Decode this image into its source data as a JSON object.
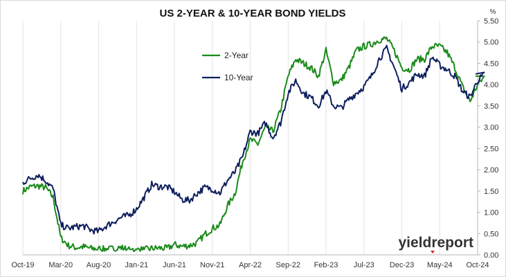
{
  "chart_data": {
    "type": "line",
    "title": "US 2-YEAR & 10-YEAR BOND YIELDS",
    "unit_label": "%",
    "ylim": [
      0.0,
      5.5
    ],
    "y_ticks": [
      "0.00",
      "0.50",
      "1.00",
      "1.50",
      "2.00",
      "2.50",
      "3.00",
      "3.50",
      "4.00",
      "4.50",
      "5.00",
      "5.50"
    ],
    "x_ticks": [
      "Oct-19",
      "Mar-20",
      "Aug-20",
      "Jan-21",
      "Jun-21",
      "Nov-21",
      "Apr-22",
      "Sep-22",
      "Feb-23",
      "Jul-23",
      "Dec-23",
      "May-24",
      "Oct-24"
    ],
    "grid": "vertical",
    "legend_position": "top-center",
    "watermark": "yieldreport",
    "series": [
      {
        "name": "2-Year",
        "color": "#1a8a1a",
        "x": [
          "2019-10",
          "2019-11",
          "2019-12",
          "2020-01",
          "2020-02",
          "2020-03",
          "2020-04",
          "2020-05",
          "2020-06",
          "2020-07",
          "2020-08",
          "2020-09",
          "2020-10",
          "2020-11",
          "2020-12",
          "2021-01",
          "2021-02",
          "2021-03",
          "2021-04",
          "2021-05",
          "2021-06",
          "2021-07",
          "2021-08",
          "2021-09",
          "2021-10",
          "2021-11",
          "2021-12",
          "2022-01",
          "2022-02",
          "2022-03",
          "2022-04",
          "2022-05",
          "2022-06",
          "2022-07",
          "2022-08",
          "2022-09",
          "2022-10",
          "2022-11",
          "2022-12",
          "2023-01",
          "2023-02",
          "2023-03",
          "2023-04",
          "2023-05",
          "2023-06",
          "2023-07",
          "2023-08",
          "2023-09",
          "2023-10",
          "2023-11",
          "2023-12",
          "2024-01",
          "2024-02",
          "2024-03",
          "2024-04",
          "2024-05",
          "2024-06",
          "2024-07",
          "2024-08",
          "2024-09",
          "2024-10",
          "2024-11"
        ],
        "values": [
          1.5,
          1.6,
          1.62,
          1.58,
          1.35,
          0.4,
          0.22,
          0.17,
          0.19,
          0.15,
          0.14,
          0.13,
          0.15,
          0.17,
          0.12,
          0.12,
          0.12,
          0.15,
          0.16,
          0.15,
          0.24,
          0.2,
          0.22,
          0.28,
          0.48,
          0.62,
          0.7,
          1.15,
          1.45,
          2.2,
          2.7,
          2.6,
          3.0,
          2.9,
          3.4,
          4.2,
          4.6,
          4.5,
          4.4,
          4.2,
          4.8,
          4.05,
          4.1,
          4.4,
          4.8,
          4.9,
          4.95,
          5.05,
          5.08,
          4.8,
          4.4,
          4.35,
          4.6,
          4.6,
          4.9,
          4.9,
          4.75,
          4.4,
          3.95,
          3.6,
          4.0,
          4.2
        ]
      },
      {
        "name": "10-Year",
        "color": "#0e1f5e",
        "x": [
          "2019-10",
          "2019-11",
          "2019-12",
          "2020-01",
          "2020-02",
          "2020-03",
          "2020-04",
          "2020-05",
          "2020-06",
          "2020-07",
          "2020-08",
          "2020-09",
          "2020-10",
          "2020-11",
          "2020-12",
          "2021-01",
          "2021-02",
          "2021-03",
          "2021-04",
          "2021-05",
          "2021-06",
          "2021-07",
          "2021-08",
          "2021-09",
          "2021-10",
          "2021-11",
          "2021-12",
          "2022-01",
          "2022-02",
          "2022-03",
          "2022-04",
          "2022-05",
          "2022-06",
          "2022-07",
          "2022-08",
          "2022-09",
          "2022-10",
          "2022-11",
          "2022-12",
          "2023-01",
          "2023-02",
          "2023-03",
          "2023-04",
          "2023-05",
          "2023-06",
          "2023-07",
          "2023-08",
          "2023-09",
          "2023-10",
          "2023-11",
          "2023-12",
          "2024-01",
          "2024-02",
          "2024-03",
          "2024-04",
          "2024-05",
          "2024-06",
          "2024-07",
          "2024-08",
          "2024-09",
          "2024-10",
          "2024-11"
        ],
        "values": [
          1.7,
          1.8,
          1.88,
          1.75,
          1.55,
          0.7,
          0.62,
          0.66,
          0.68,
          0.58,
          0.55,
          0.68,
          0.78,
          0.88,
          0.93,
          1.08,
          1.35,
          1.65,
          1.6,
          1.6,
          1.48,
          1.3,
          1.28,
          1.45,
          1.58,
          1.55,
          1.45,
          1.75,
          1.95,
          2.3,
          2.9,
          2.85,
          3.1,
          2.75,
          3.1,
          3.8,
          4.1,
          3.8,
          3.7,
          3.5,
          3.85,
          3.5,
          3.45,
          3.65,
          3.8,
          3.95,
          4.2,
          4.6,
          4.85,
          4.4,
          3.9,
          4.05,
          4.25,
          4.2,
          4.65,
          4.45,
          4.35,
          4.2,
          3.85,
          3.7,
          4.1,
          4.25
        ]
      }
    ]
  }
}
